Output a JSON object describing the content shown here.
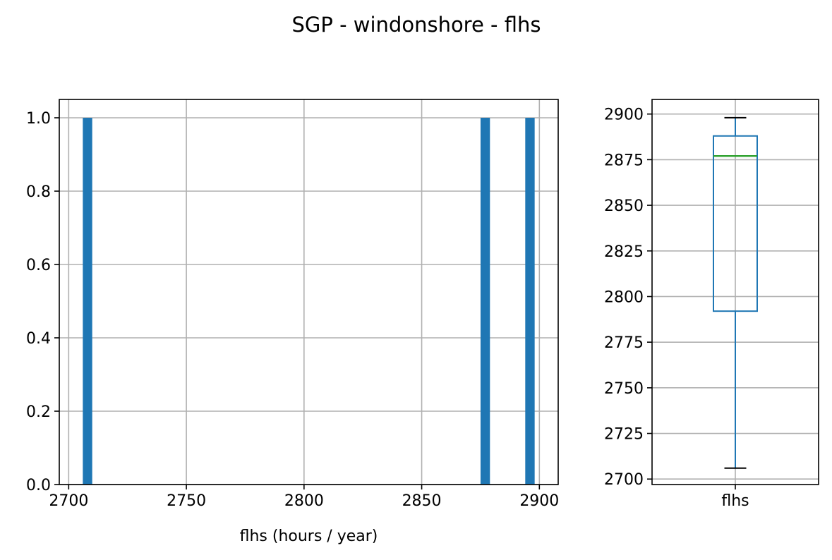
{
  "title": "SGP - windonshore - flhs",
  "chart_data": [
    {
      "type": "histogram",
      "xlabel": "flhs (hours / year)",
      "ylabel": "",
      "xlim": [
        2696,
        2908
      ],
      "ylim": [
        0,
        1.05
      ],
      "xticks": [
        2700,
        2750,
        2800,
        2850,
        2900
      ],
      "yticks": [
        0.0,
        0.2,
        0.4,
        0.6,
        0.8,
        1.0
      ],
      "ytick_labels": [
        "0.0",
        "0.2",
        "0.4",
        "0.6",
        "0.8",
        "1.0"
      ],
      "grid": true,
      "color": "#1f77b4",
      "bins": [
        {
          "x0": 2706,
          "x1": 2710,
          "count": 1
        },
        {
          "x0": 2875,
          "x1": 2879,
          "count": 1
        },
        {
          "x0": 2894,
          "x1": 2898,
          "count": 1
        }
      ]
    },
    {
      "type": "box",
      "xticks": [
        "flhs"
      ],
      "ylim": [
        2697,
        2908
      ],
      "yticks": [
        2700,
        2725,
        2750,
        2775,
        2800,
        2825,
        2850,
        2875,
        2900
      ],
      "grid": true,
      "box_color": "#1f77b4",
      "median_color": "#2ca02c",
      "whisker_low": 2706,
      "q1": 2792,
      "median": 2877,
      "q3": 2888,
      "whisker_high": 2898
    }
  ]
}
